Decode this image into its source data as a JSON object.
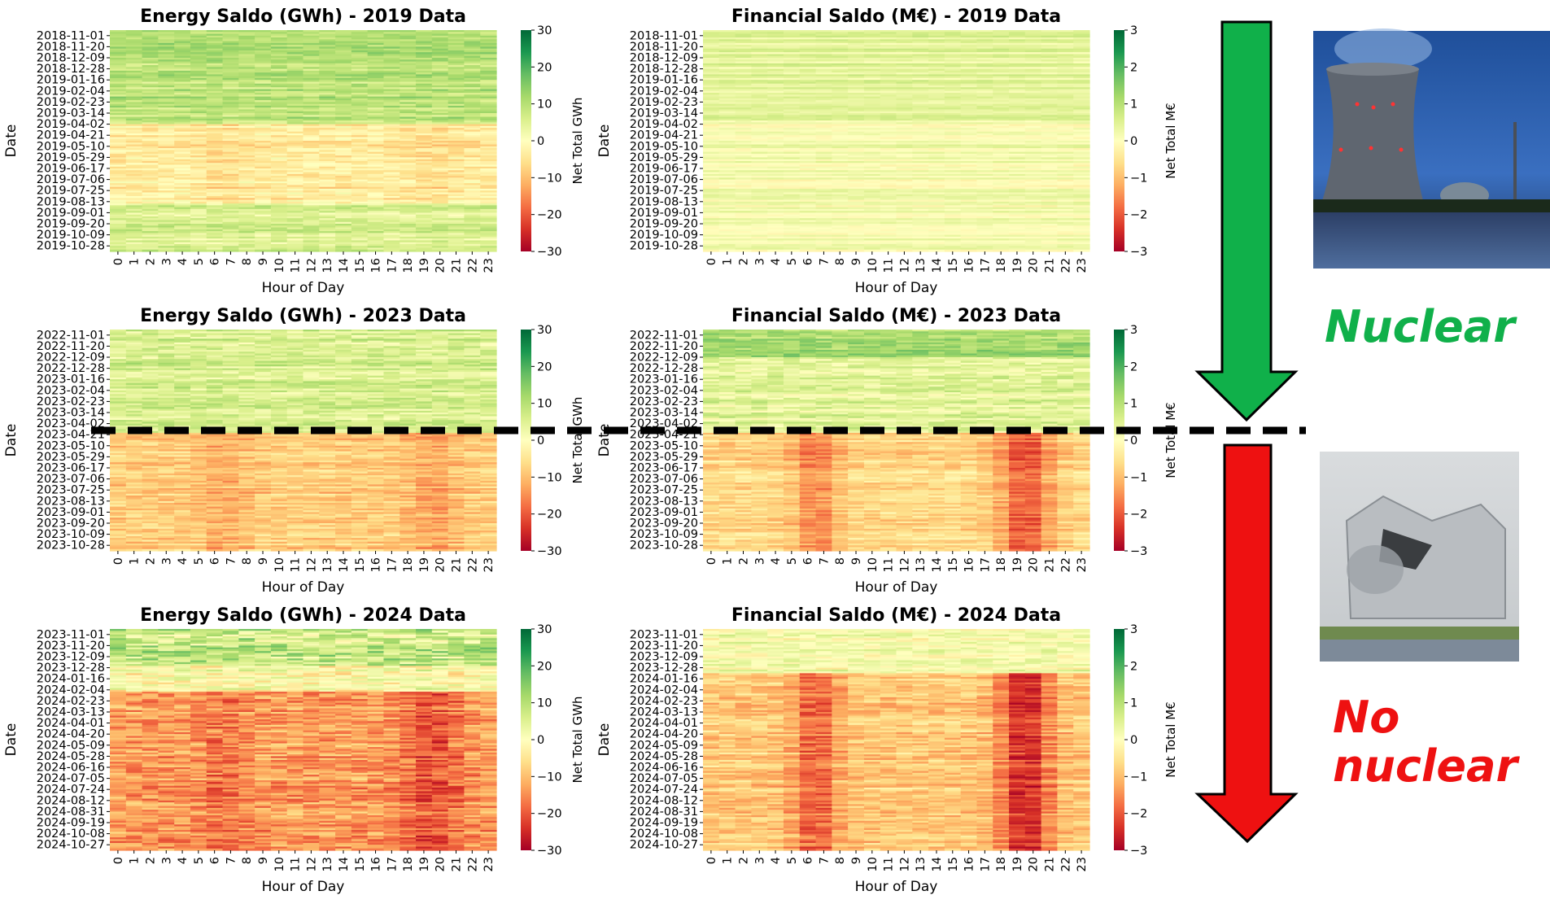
{
  "panels": [
    {
      "title": "Energy Saldo (GWh) - 2019 Data",
      "colorbar_label": "Net Total GWh",
      "ticks": [
        "30",
        "20",
        "10",
        "0",
        "−10",
        "−20",
        "−30"
      ],
      "dates": [
        "2018-11-01",
        "2018-11-20",
        "2018-12-09",
        "2018-12-28",
        "2019-01-16",
        "2019-02-04",
        "2019-02-23",
        "2019-03-14",
        "2019-04-02",
        "2019-04-21",
        "2019-05-10",
        "2019-05-29",
        "2019-06-17",
        "2019-07-06",
        "2019-07-25",
        "2019-08-13",
        "2019-09-01",
        "2019-09-20",
        "2019-10-09",
        "2019-10-28"
      ]
    },
    {
      "title": "Financial Saldo (M€) - 2019 Data",
      "colorbar_label": "Net Total M€",
      "ticks": [
        "3",
        "2",
        "1",
        "0",
        "−1",
        "−2",
        "−3"
      ],
      "dates": [
        "2018-11-01",
        "2018-11-20",
        "2018-12-09",
        "2018-12-28",
        "2019-01-16",
        "2019-02-04",
        "2019-02-23",
        "2019-03-14",
        "2019-04-02",
        "2019-04-21",
        "2019-05-10",
        "2019-05-29",
        "2019-06-17",
        "2019-07-06",
        "2019-07-25",
        "2019-08-13",
        "2019-09-01",
        "2019-09-20",
        "2019-10-09",
        "2019-10-28"
      ]
    },
    {
      "title": "Energy Saldo (GWh) - 2023 Data",
      "colorbar_label": "Net Total GWh",
      "ticks": [
        "30",
        "20",
        "10",
        "0",
        "−10",
        "−20",
        "−30"
      ],
      "dates": [
        "2022-11-01",
        "2022-11-20",
        "2022-12-09",
        "2022-12-28",
        "2023-01-16",
        "2023-02-04",
        "2023-02-23",
        "2023-03-14",
        "2023-04-02",
        "2023-04-21",
        "2023-05-10",
        "2023-05-29",
        "2023-06-17",
        "2023-07-06",
        "2023-07-25",
        "2023-08-13",
        "2023-09-01",
        "2023-09-20",
        "2023-10-09",
        "2023-10-28"
      ]
    },
    {
      "title": "Financial Saldo (M€) - 2023 Data",
      "colorbar_label": "Net Total M€",
      "ticks": [
        "3",
        "2",
        "1",
        "0",
        "−1",
        "−2",
        "−3"
      ],
      "dates": [
        "2022-11-01",
        "2022-11-20",
        "2022-12-09",
        "2022-12-28",
        "2023-01-16",
        "2023-02-04",
        "2023-02-23",
        "2023-03-14",
        "2023-04-02",
        "2023-04-21",
        "2023-05-10",
        "2023-05-29",
        "2023-06-17",
        "2023-07-06",
        "2023-07-25",
        "2023-08-13",
        "2023-09-01",
        "2023-09-20",
        "2023-10-09",
        "2023-10-28"
      ]
    },
    {
      "title": "Energy Saldo (GWh) - 2024 Data",
      "colorbar_label": "Net Total GWh",
      "ticks": [
        "30",
        "20",
        "10",
        "0",
        "−10",
        "−20",
        "−30"
      ],
      "dates": [
        "2023-11-01",
        "2023-11-20",
        "2023-12-09",
        "2023-12-28",
        "2024-01-16",
        "2024-02-04",
        "2024-02-23",
        "2024-03-13",
        "2024-04-01",
        "2024-04-20",
        "2024-05-09",
        "2024-05-28",
        "2024-06-16",
        "2024-07-05",
        "2024-07-24",
        "2024-08-12",
        "2024-08-31",
        "2024-09-19",
        "2024-10-08",
        "2024-10-27"
      ]
    },
    {
      "title": "Financial Saldo (M€) - 2024 Data",
      "colorbar_label": "Net Total M€",
      "ticks": [
        "3",
        "2",
        "1",
        "0",
        "−1",
        "−2",
        "−3"
      ],
      "dates": [
        "2023-11-01",
        "2023-11-20",
        "2023-12-09",
        "2023-12-28",
        "2024-01-16",
        "2024-02-04",
        "2024-02-23",
        "2024-03-13",
        "2024-04-01",
        "2024-04-20",
        "2024-05-09",
        "2024-05-28",
        "2024-06-16",
        "2024-07-05",
        "2024-07-24",
        "2024-08-12",
        "2024-08-31",
        "2024-09-19",
        "2024-10-08",
        "2024-10-27"
      ]
    }
  ],
  "axis": {
    "xlabel": "Hour of Day",
    "ylabel": "Date",
    "hours": [
      "0",
      "1",
      "2",
      "3",
      "4",
      "5",
      "6",
      "7",
      "8",
      "9",
      "10",
      "11",
      "12",
      "13",
      "14",
      "15",
      "16",
      "17",
      "18",
      "19",
      "20",
      "21",
      "22",
      "23"
    ]
  },
  "side": {
    "nuclear_label": "Nuclear",
    "no_nuclear_line1": "No",
    "no_nuclear_line2": "nuclear"
  },
  "colors": {
    "arrow_up": "#10b04a",
    "arrow_down": "#ee1111",
    "divider": "#000000"
  },
  "chart_data": [
    {
      "type": "heatmap",
      "title": "Energy Saldo (GWh) - 2019 Data",
      "xlabel": "Hour of Day",
      "ylabel": "Date",
      "x_range": [
        0,
        23
      ],
      "y_range": [
        "2018-11-01",
        "2019-10-28"
      ],
      "color_range": [
        -30,
        30
      ],
      "colorbar_label": "Net Total GWh",
      "colormap": "RdYlGn",
      "season_means": [
        {
          "period": "2018-11 to 2019-04",
          "value": 10
        },
        {
          "period": "2019-05 to 2019-08",
          "value": -4
        },
        {
          "period": "2019-09 to 2019-10",
          "value": 6
        }
      ]
    },
    {
      "type": "heatmap",
      "title": "Financial Saldo (M€) - 2019 Data",
      "xlabel": "Hour of Day",
      "ylabel": "Date",
      "x_range": [
        0,
        23
      ],
      "y_range": [
        "2018-11-01",
        "2019-10-28"
      ],
      "color_range": [
        -3,
        3
      ],
      "colorbar_label": "Net Total M€",
      "colormap": "RdYlGn",
      "season_means": [
        {
          "period": "2018-11 to 2019-04",
          "value": 0.4
        },
        {
          "period": "2019-05 to 2019-10",
          "value": 0.1
        }
      ]
    },
    {
      "type": "heatmap",
      "title": "Energy Saldo (GWh) - 2023 Data",
      "xlabel": "Hour of Day",
      "ylabel": "Date",
      "x_range": [
        0,
        23
      ],
      "y_range": [
        "2022-11-01",
        "2023-10-28"
      ],
      "color_range": [
        -30,
        30
      ],
      "colorbar_label": "Net Total GWh",
      "colormap": "RdYlGn",
      "season_means": [
        {
          "period": "2022-11 to 2023-04",
          "value": 6
        },
        {
          "period": "2023-05 to 2023-10",
          "value": -10
        }
      ]
    },
    {
      "type": "heatmap",
      "title": "Financial Saldo (M€) - 2023 Data",
      "xlabel": "Hour of Day",
      "ylabel": "Date",
      "x_range": [
        0,
        23
      ],
      "y_range": [
        "2022-11-01",
        "2023-10-28"
      ],
      "color_range": [
        -3,
        3
      ],
      "colorbar_label": "Net Total M€",
      "colormap": "RdYlGn",
      "season_means": [
        {
          "period": "2022-11 to 2023-04",
          "value": 0.5
        },
        {
          "period": "2023-05 to 2023-10",
          "value": -1
        }
      ]
    },
    {
      "type": "heatmap",
      "title": "Energy Saldo (GWh) - 2024 Data",
      "xlabel": "Hour of Day",
      "ylabel": "Date",
      "x_range": [
        0,
        23
      ],
      "y_range": [
        "2023-11-01",
        "2024-10-27"
      ],
      "color_range": [
        -30,
        30
      ],
      "colorbar_label": "Net Total GWh",
      "colormap": "RdYlGn",
      "season_means": [
        {
          "period": "2023-11 to 2024-02",
          "value": 5
        },
        {
          "period": "2024-03 to 2024-10",
          "value": -15
        }
      ]
    },
    {
      "type": "heatmap",
      "title": "Financial Saldo (M€) - 2024 Data",
      "xlabel": "Hour of Day",
      "ylabel": "Date",
      "x_range": [
        0,
        23
      ],
      "y_range": [
        "2023-11-01",
        "2024-10-27"
      ],
      "color_range": [
        -3,
        3
      ],
      "colorbar_label": "Net Total M€",
      "colormap": "RdYlGn",
      "season_means": [
        {
          "period": "2023-11 to 2024-02",
          "value": 0.2
        },
        {
          "period": "2024-03 to 2024-10",
          "value": -1.5
        }
      ]
    }
  ]
}
